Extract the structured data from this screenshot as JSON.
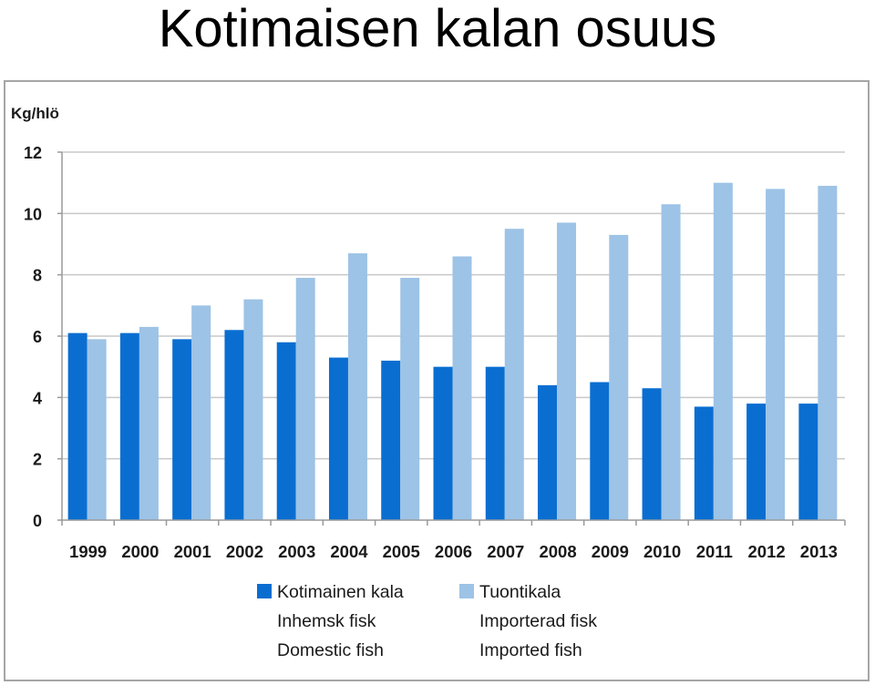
{
  "page": {
    "title": "Kotimaisen kalan osuus"
  },
  "chart_data": {
    "type": "bar",
    "title": "",
    "ylabel": "Kg/hlö",
    "xlabel": "",
    "ylim": [
      0,
      12
    ],
    "yticks": [
      0,
      2,
      4,
      6,
      8,
      10,
      12
    ],
    "grid": true,
    "legend_position": "bottom",
    "categories": [
      "1999",
      "2000",
      "2001",
      "2002",
      "2003",
      "2004",
      "2005",
      "2006",
      "2007",
      "2008",
      "2009",
      "2010",
      "2011",
      "2012",
      "2013"
    ],
    "series": [
      {
        "name": "Kotimainen kala",
        "name_lines": [
          "Kotimainen kala",
          "Inhemsk fisk",
          "Domestic fish"
        ],
        "color": "#0a6ed1",
        "values": [
          6.1,
          6.1,
          5.9,
          6.2,
          5.8,
          5.3,
          5.2,
          5.0,
          5.0,
          4.4,
          4.5,
          4.3,
          3.7,
          3.8,
          3.8
        ]
      },
      {
        "name": "Tuontikala",
        "name_lines": [
          "Tuontikala",
          "Importerad fisk",
          "Imported fish"
        ],
        "color": "#9dc3e6",
        "values": [
          5.9,
          6.3,
          7.0,
          7.2,
          7.9,
          8.7,
          7.9,
          8.6,
          9.5,
          9.7,
          9.3,
          10.3,
          11.0,
          10.8,
          10.9
        ]
      }
    ]
  }
}
